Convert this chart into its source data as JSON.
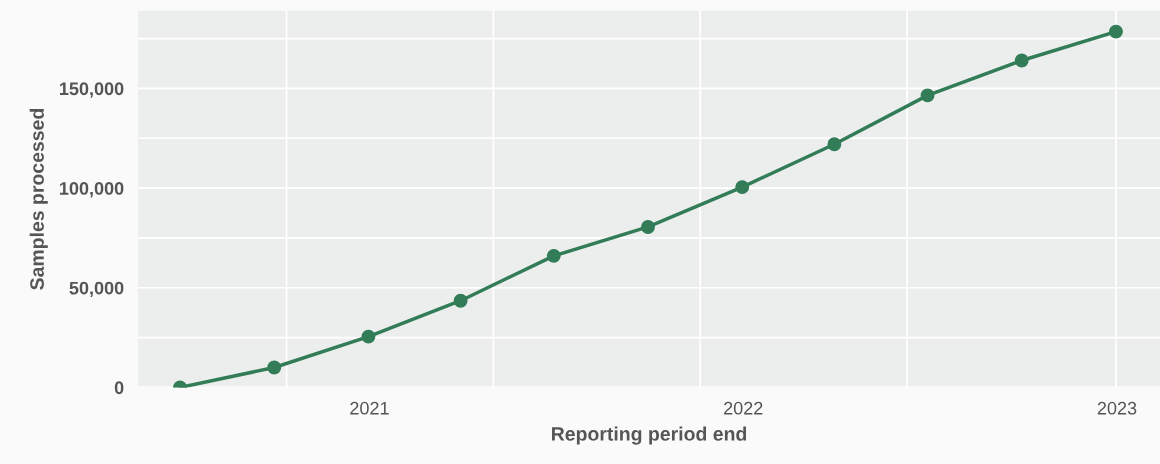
{
  "chart_data": {
    "type": "line",
    "xlabel": "Reporting period end",
    "ylabel": "Samples processed",
    "x": [
      "2020-06-30",
      "2020-09-30",
      "2020-12-31",
      "2021-03-31",
      "2021-06-30",
      "2021-09-30",
      "2021-12-31",
      "2022-03-31",
      "2022-06-30",
      "2022-09-30",
      "2022-12-31"
    ],
    "series": [
      {
        "color": "#327d58",
        "values": [
          0,
          10000,
          25500,
          43500,
          66000,
          80500,
          100500,
          122000,
          146500,
          164000,
          178500
        ]
      }
    ],
    "xlim": [
      "2020-05-20",
      "2023-02-12"
    ],
    "xticks": [
      {
        "value": "2020-10-12",
        "label": null
      },
      {
        "value": "2021-01-01",
        "label": "2021"
      },
      {
        "value": "2021-05-02",
        "label": null
      },
      {
        "value": "2021-11-20",
        "label": null
      },
      {
        "value": "2022-01-01",
        "label": "2022"
      },
      {
        "value": "2022-06-10",
        "label": null
      },
      {
        "value": "2022-12-31",
        "label": null
      },
      {
        "value": "2023-01-01",
        "label": "2023"
      }
    ],
    "ylim": [
      0,
      189000
    ],
    "yticks": [
      {
        "value": 0,
        "label": "0"
      },
      {
        "value": 25000,
        "label": null
      },
      {
        "value": 50000,
        "label": "50,000"
      },
      {
        "value": 75000,
        "label": null
      },
      {
        "value": 100000,
        "label": "100,000"
      },
      {
        "value": 125000,
        "label": null
      },
      {
        "value": 150000,
        "label": "150,000"
      },
      {
        "value": 175000,
        "label": null
      }
    ],
    "grid": true,
    "legend": false,
    "marker": "circle",
    "line_style": "solid"
  }
}
